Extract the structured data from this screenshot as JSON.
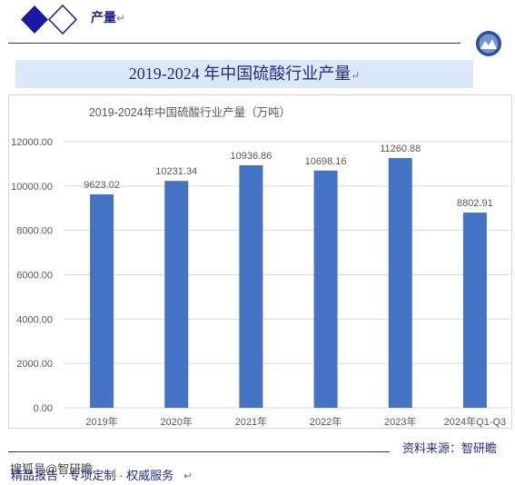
{
  "header": {
    "section_title": "产量",
    "para_mark": "↵"
  },
  "banner": {
    "title": "2019-2024 年中国硫酸行业产量",
    "para_mark": "↵"
  },
  "chart_data": {
    "type": "bar",
    "title": "2019-2024年中国硫酸行业产量（万吨）",
    "categories": [
      "2019年",
      "2020年",
      "2021年",
      "2022年",
      "2023年",
      "2024年Q1-Q3"
    ],
    "values": [
      9623.02,
      10231.34,
      10936.86,
      10698.16,
      11260.88,
      8802.91
    ],
    "value_labels": [
      "9623.02",
      "10231.34",
      "10936.86",
      "10698.16",
      "11260.88",
      "8802.91"
    ],
    "ylim": [
      0,
      12000
    ],
    "yticks": [
      0,
      2000,
      4000,
      6000,
      8000,
      10000,
      12000
    ],
    "ytick_labels": [
      "0.00",
      "2000.00",
      "4000.00",
      "6000.00",
      "8000.00",
      "10000.00",
      "12000.00"
    ],
    "xlabel": "",
    "ylabel": "",
    "grid": true,
    "bar_color": "#4472c4",
    "grid_color": "#d9d9d9",
    "label_color": "#595959"
  },
  "source": {
    "text": "资料来源：智研瞻"
  },
  "footer": {
    "text": "精品报告 · 专项定制 · 权威服务",
    "para_mark": "↵"
  },
  "watermark": {
    "text": "搜狐号@智研瞻"
  },
  "colors": {
    "accent": "#1f1f8f",
    "banner_bg": "#dbe8f7"
  }
}
